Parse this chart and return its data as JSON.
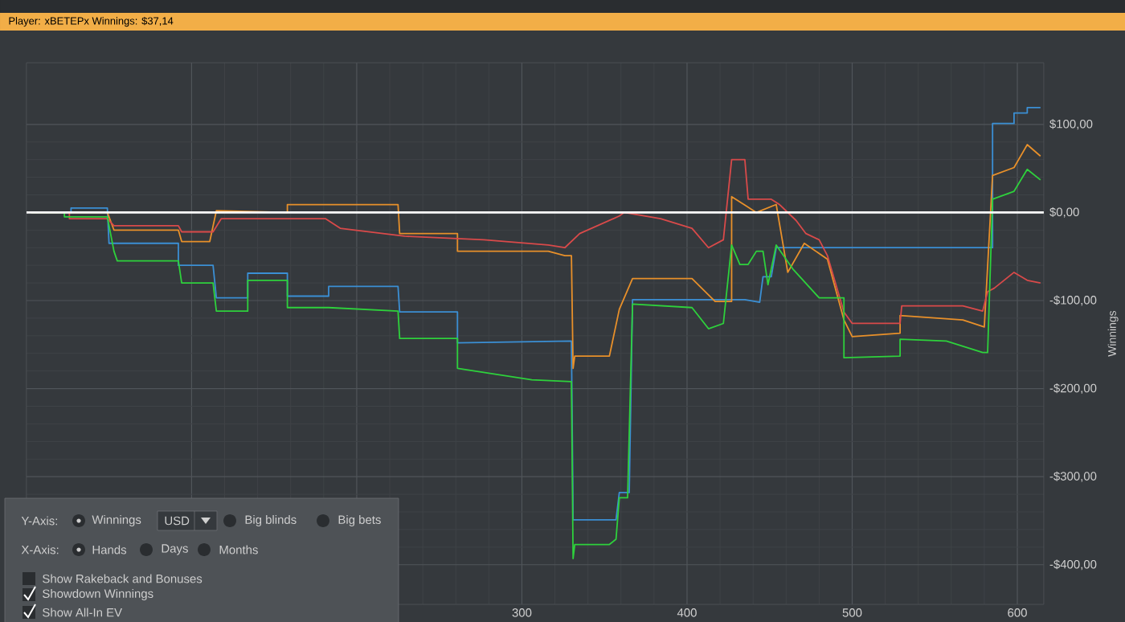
{
  "chart_data": {
    "type": "line",
    "title": "Player: xBETEPx Winnings: $37,14",
    "ylabel": "Winnings",
    "xlim": [
      0,
      616
    ],
    "ylim": [
      -445,
      170
    ],
    "xticks": [
      {
        "value": 100,
        "label": null
      },
      {
        "value": 200,
        "label": null
      },
      300,
      400,
      500,
      600
    ],
    "yticks": [
      {
        "value": 100,
        "label": "$100,00"
      },
      {
        "value": 0,
        "label": "$0,00"
      },
      {
        "value": -100,
        "label": "-$100,00"
      },
      {
        "value": -200,
        "label": "-$200,00"
      },
      {
        "value": -300,
        "label": "-$300,00"
      },
      {
        "value": -400,
        "label": "-$400,00"
      }
    ],
    "grid": true,
    "ref_lines": [
      {
        "axis": "y",
        "value": 0,
        "color": "#ffffff"
      }
    ],
    "annotations": [
      "Y-Axis:",
      "Winnings",
      "USD",
      "Big blinds",
      "Big bets",
      "X-Axis:",
      "Hands",
      "Days",
      "Months",
      "Show Rakeback and Bonuses",
      "Showdown Winnings",
      "Show All-In EV"
    ],
    "series": [
      {
        "color": "#3b8fd4",
        "x": [
          3,
          27,
          27,
          49,
          50,
          92,
          92,
          113,
          115,
          134,
          134,
          158,
          158,
          183,
          183,
          225,
          226,
          261,
          261,
          330,
          331,
          357,
          359,
          365,
          367,
          435,
          444,
          446,
          451,
          454,
          468,
          585,
          585,
          598,
          598,
          606,
          606,
          614
        ],
        "values": [
          0,
          0,
          5,
          5,
          -35,
          -35,
          -60,
          -60,
          -97,
          -97,
          -69,
          -69,
          -95,
          -95,
          -84,
          -84,
          -113,
          -113,
          -148,
          -146,
          -349,
          -349,
          -318,
          -318,
          -99,
          -99,
          -102,
          -73,
          -73,
          -40,
          -40,
          -40,
          101,
          101,
          113,
          113,
          119,
          119
        ]
      },
      {
        "color": "#e8902a",
        "x": [
          3,
          49,
          53,
          92,
          94,
          111,
          115,
          158,
          158,
          225,
          226,
          261,
          261,
          316,
          326,
          330,
          331,
          332,
          353,
          359,
          367,
          403,
          417,
          427,
          427,
          442,
          454,
          461,
          471,
          485,
          495,
          500,
          529,
          529,
          567,
          580,
          585,
          598,
          606,
          614
        ],
        "values": [
          0,
          0,
          -20,
          -20,
          -33,
          -33,
          2,
          0,
          9,
          9,
          -24,
          -24,
          -44,
          -44,
          -49,
          -49,
          -177,
          -163,
          -163,
          -110,
          -75,
          -75,
          -101,
          -101,
          18,
          0,
          9,
          -68,
          -35,
          -53,
          -122,
          -141,
          -137,
          -117,
          -122,
          -130,
          42,
          51,
          77,
          64
        ]
      },
      {
        "color": "#d94a4a",
        "x": [
          3,
          26,
          26,
          49,
          53,
          92,
          94,
          113,
          118,
          181,
          190,
          229,
          277,
          316,
          326,
          335,
          359,
          362,
          384,
          403,
          413,
          422,
          427,
          435,
          437,
          451,
          456,
          466,
          472,
          480,
          485,
          495,
          500,
          529,
          530,
          567,
          579,
          582,
          586,
          598,
          606,
          614
        ],
        "values": [
          0,
          0,
          -7,
          -7,
          -15,
          -15,
          -22,
          -22,
          -7,
          -7,
          -18,
          -27,
          -31,
          -37,
          -40,
          -24,
          -4,
          0,
          -7,
          -18,
          -40,
          -31,
          60,
          60,
          15,
          15,
          9,
          -9,
          -24,
          -31,
          -49,
          -113,
          -126,
          -126,
          -106,
          -106,
          -112,
          -90,
          -86,
          -68,
          -77,
          -80
        ]
      },
      {
        "color": "#2ed13c",
        "x": [
          3,
          23,
          23,
          49,
          53,
          55,
          92,
          94,
          113,
          115,
          134,
          134,
          158,
          158,
          183,
          225,
          226,
          261,
          261,
          306,
          330,
          331,
          332,
          353,
          357,
          359,
          364,
          367,
          403,
          413,
          422,
          427,
          432,
          437,
          442,
          446,
          449,
          454,
          464,
          480,
          495,
          495,
          529,
          529,
          557,
          579,
          582,
          585,
          598,
          606,
          614
        ],
        "values": [
          0,
          0,
          -5,
          -5,
          -44,
          -55,
          -55,
          -80,
          -80,
          -112,
          -112,
          -77,
          -77,
          -108,
          -108,
          -112,
          -143,
          -143,
          -177,
          -190,
          -192,
          -393,
          -377,
          -377,
          -371,
          -324,
          -324,
          -104,
          -108,
          -132,
          -126,
          -37,
          -59,
          -59,
          -44,
          -44,
          -82,
          -37,
          -64,
          -97,
          -97,
          -165,
          -163,
          -144,
          -146,
          -159,
          -159,
          15,
          24,
          49,
          37
        ]
      }
    ]
  }
}
